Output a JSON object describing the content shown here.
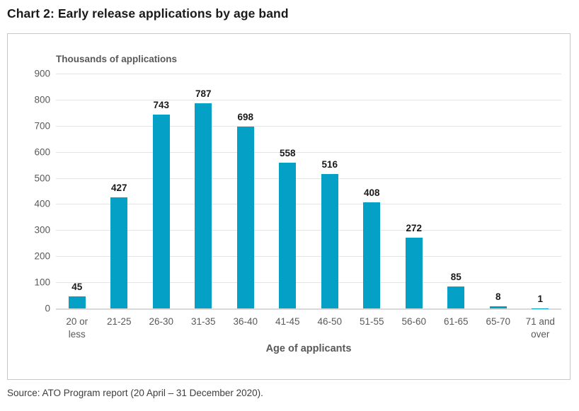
{
  "title": "Chart 2: Early release applications by age band",
  "source": "Source: ATO Program report (20 April – 31 December 2020).",
  "chart_data": {
    "type": "bar",
    "title": "Chart 2: Early release applications by age band",
    "ylabel": "Thousands of applications",
    "xlabel": "Age of applicants",
    "categories": [
      "20 or less",
      "21-25",
      "26-30",
      "31-35",
      "36-40",
      "41-45",
      "46-50",
      "51-55",
      "56-60",
      "61-65",
      "65-70",
      "71 and over"
    ],
    "values": [
      45,
      427,
      743,
      787,
      698,
      558,
      516,
      408,
      272,
      85,
      8,
      1
    ],
    "ylim": [
      0,
      900
    ],
    "ytick_step": 100,
    "grid": true,
    "legend_position": "none",
    "colors": {
      "bar": "#05a0c5",
      "grid": "#e4e4e4",
      "axis": "#d9d9d9",
      "tick_label": "#58595b",
      "data_label": "#1a1a1a",
      "frame_border": "#c7c8ca",
      "title": "#1a1a1a",
      "source": "#3d3d3d"
    }
  }
}
